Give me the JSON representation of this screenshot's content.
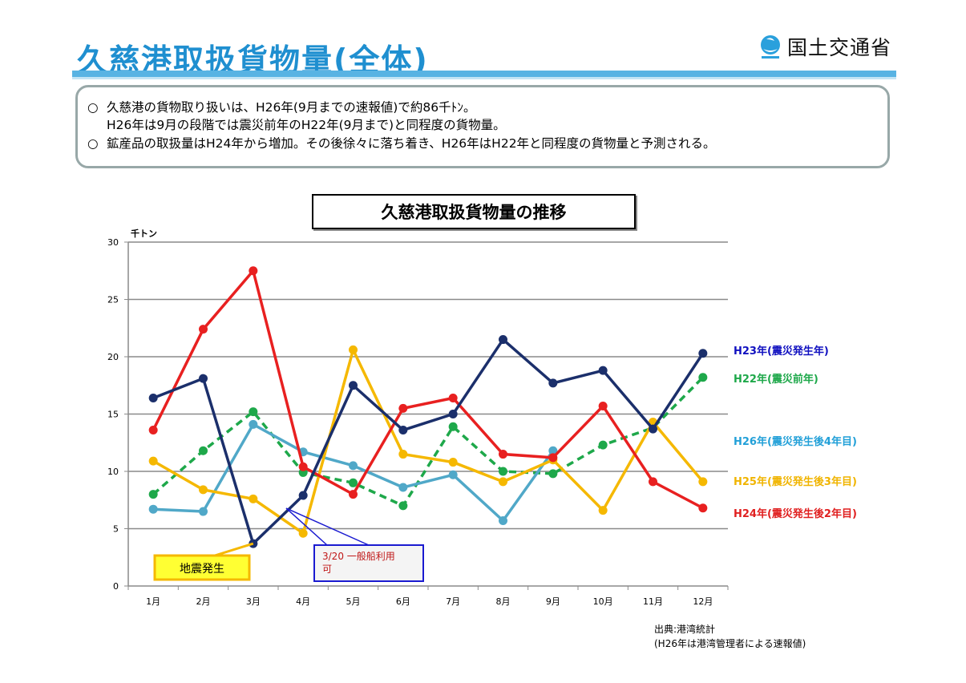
{
  "page": {
    "title": "久慈港取扱貨物量(全体)",
    "logo_text": "国土交通省"
  },
  "summary": {
    "bullet_mark": "○",
    "lines": [
      "久慈港の貨物取り扱いは、H26年(9月までの速報値)で約86千ﾄﾝ。",
      "H26年は9月の段階では震災前年のH22年(9月まで)と同程度の貨物量。",
      "鉱産品の取扱量はH24年から増加。その後徐々に落ち着き、H26年はH22年と同程度の貨物量と予測される。"
    ]
  },
  "chart_data": {
    "type": "line",
    "title": "久慈港取扱貨物量の推移",
    "ylabel": "千トン",
    "xlabel": "",
    "ylim": [
      0,
      30
    ],
    "yticks": [
      0,
      5,
      10,
      15,
      20,
      25,
      30
    ],
    "grid": true,
    "categories": [
      "1月",
      "2月",
      "3月",
      "4月",
      "5月",
      "6月",
      "7月",
      "8月",
      "9月",
      "10月",
      "11月",
      "12月"
    ],
    "series": [
      {
        "name": "H23年(震災発生年)",
        "color": "#1b2f6b",
        "label_color": "#1010c0",
        "dashed": false,
        "values": [
          16.4,
          18.1,
          3.7,
          7.9,
          17.5,
          13.6,
          15.0,
          21.5,
          17.7,
          18.8,
          13.7,
          20.3
        ]
      },
      {
        "name": "H22年(震災前年)",
        "color": "#1ea84a",
        "label_color": "#1ea84a",
        "dashed": true,
        "values": [
          8.0,
          11.8,
          15.2,
          9.9,
          9.0,
          7.0,
          13.9,
          10.0,
          9.8,
          12.3,
          13.8,
          18.2
        ]
      },
      {
        "name": "H26年(震災発生後4年目)",
        "color": "#50a8c8",
        "label_color": "#22a0d8",
        "dashed": false,
        "values": [
          6.7,
          6.5,
          14.1,
          11.7,
          10.5,
          8.6,
          9.7,
          5.7,
          11.8,
          null,
          null,
          null
        ]
      },
      {
        "name": "H25年(震災発生後3年目)",
        "color": "#f5b800",
        "label_color": "#f0b400",
        "dashed": false,
        "values": [
          10.9,
          8.4,
          7.6,
          4.6,
          20.6,
          11.5,
          10.8,
          9.1,
          11.0,
          6.6,
          14.3,
          9.1
        ]
      },
      {
        "name": "H24年(震災発生後2年目)",
        "color": "#e82020",
        "label_color": "#e02020",
        "dashed": false,
        "values": [
          13.6,
          22.4,
          27.5,
          10.4,
          8.0,
          15.5,
          16.4,
          11.5,
          11.2,
          15.7,
          9.1,
          6.8
        ]
      }
    ],
    "annotations": [
      {
        "text": "地震発生",
        "month_index": 2
      },
      {
        "text": "3/20 一般船利用可",
        "lines": [
          "3/20 一般船利用",
          "可"
        ],
        "month_index": 3
      }
    ]
  },
  "source": {
    "line1": "出典:港湾統計",
    "line2": "(H26年は港湾管理者による速報値)"
  }
}
